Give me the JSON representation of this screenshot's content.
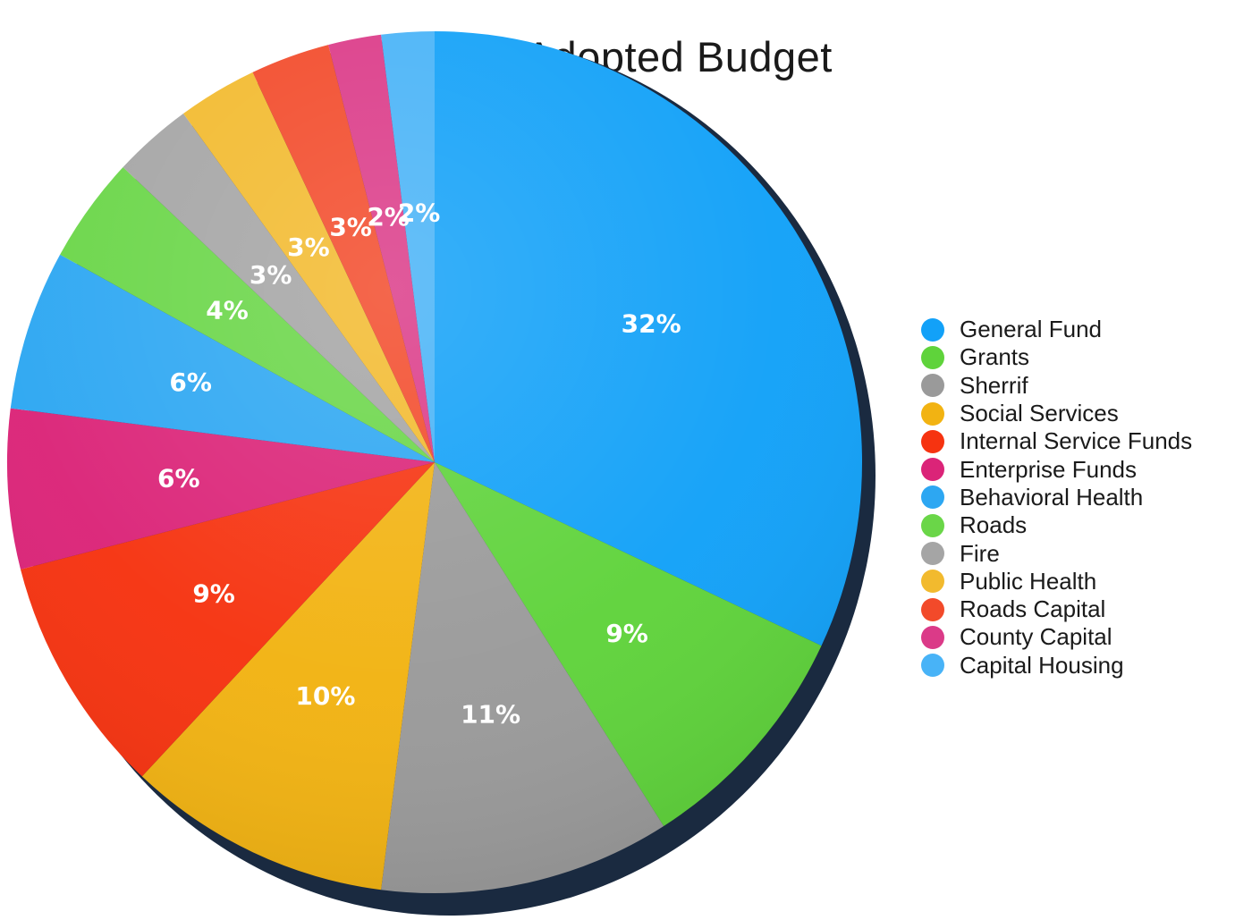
{
  "chart_data": {
    "type": "pie",
    "title": "2026 Adopted Budget",
    "legend_position": "right",
    "slices": [
      {
        "name": "General Fund",
        "value": 32,
        "label": "32%",
        "color": "#12A1F8"
      },
      {
        "name": "Grants",
        "value": 9,
        "label": "9%",
        "color": "#5FD33B"
      },
      {
        "name": "Sherrif",
        "value": 11,
        "label": "11%",
        "color": "#9A9A9A"
      },
      {
        "name": "Social Services",
        "value": 10,
        "label": "10%",
        "color": "#F2B312"
      },
      {
        "name": "Internal Service Funds",
        "value": 9,
        "label": "9%",
        "color": "#F63310"
      },
      {
        "name": "Enterprise Funds",
        "value": 6,
        "label": "6%",
        "color": "#DB2478"
      },
      {
        "name": "Behavioral Health",
        "value": 6,
        "label": "6%",
        "color": "#2DA7F2"
      },
      {
        "name": "Roads",
        "value": 4,
        "label": "4%",
        "color": "#6AD648"
      },
      {
        "name": "Fire",
        "value": 3,
        "label": "3%",
        "color": "#A5A5A5"
      },
      {
        "name": "Public Health",
        "value": 3,
        "label": "3%",
        "color": "#F2BA2E"
      },
      {
        "name": "Roads Capital",
        "value": 3,
        "label": "3%",
        "color": "#F24A2A"
      },
      {
        "name": "County Capital",
        "value": 2,
        "label": "2%",
        "color": "#DB3A88"
      },
      {
        "name": "Capital Housing",
        "value": 2,
        "label": "2%",
        "color": "#48B3F7"
      }
    ]
  }
}
